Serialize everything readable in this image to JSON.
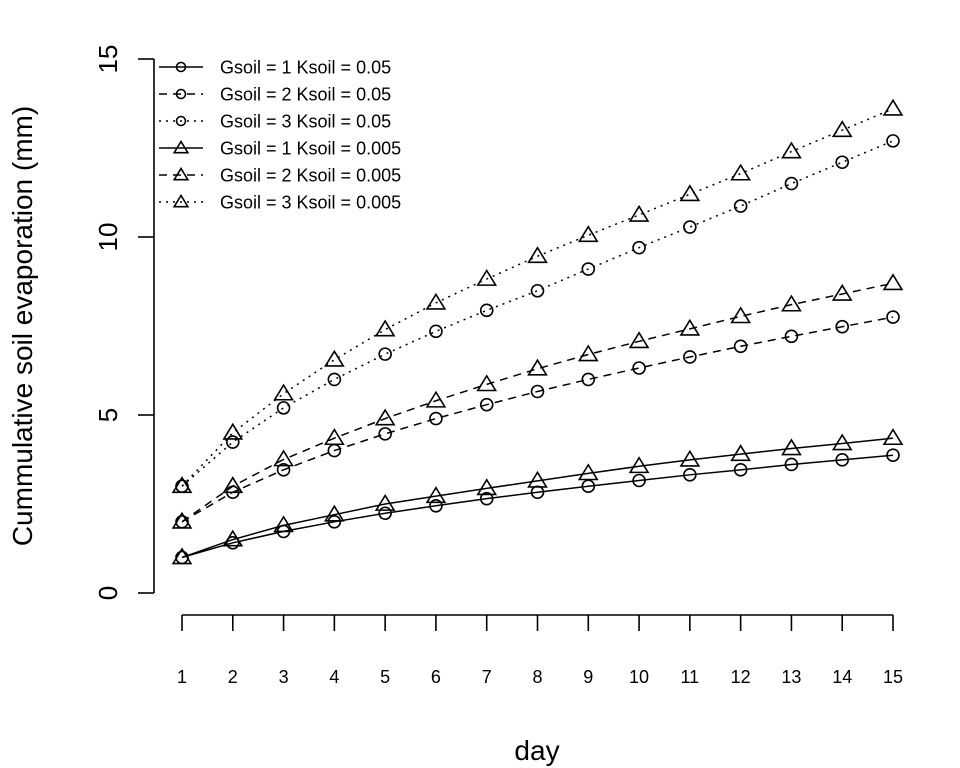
{
  "chart_data": {
    "type": "line",
    "title": "",
    "xlabel": "day",
    "ylabel": "Cummulative soil evaporation (mm)",
    "xlim": [
      1,
      15
    ],
    "ylim": [
      0,
      15
    ],
    "x_ticks": [
      1,
      2,
      3,
      4,
      5,
      6,
      7,
      8,
      9,
      10,
      11,
      12,
      13,
      14,
      15
    ],
    "y_ticks": [
      0,
      5,
      10,
      15
    ],
    "grid": false,
    "legend_position": "top-left",
    "x": [
      1,
      2,
      3,
      4,
      5,
      6,
      7,
      8,
      9,
      10,
      11,
      12,
      13,
      14,
      15
    ],
    "series": [
      {
        "name": "Gsoil = 1 Ksoil = 0.05",
        "marker": "circle",
        "line": "solid",
        "values": [
          1.0,
          1.41,
          1.73,
          2.0,
          2.24,
          2.45,
          2.65,
          2.83,
          3.0,
          3.16,
          3.32,
          3.46,
          3.61,
          3.74,
          3.87
        ]
      },
      {
        "name": "Gsoil = 2 Ksoil = 0.05",
        "marker": "circle",
        "line": "dashed",
        "values": [
          2.0,
          2.83,
          3.46,
          4.0,
          4.47,
          4.9,
          5.29,
          5.66,
          6.0,
          6.32,
          6.63,
          6.93,
          7.21,
          7.48,
          7.75
        ]
      },
      {
        "name": "Gsoil = 3 Ksoil = 0.05",
        "marker": "circle",
        "line": "dotted",
        "values": [
          3.0,
          4.24,
          5.2,
          6.0,
          6.71,
          7.35,
          7.94,
          8.49,
          9.1,
          9.7,
          10.28,
          10.87,
          11.5,
          12.1,
          12.7
        ]
      },
      {
        "name": "Gsoil = 1 Ksoil = 0.005",
        "marker": "triangle",
        "line": "solid",
        "values": [
          1.0,
          1.5,
          1.9,
          2.2,
          2.5,
          2.72,
          2.94,
          3.15,
          3.36,
          3.56,
          3.74,
          3.9,
          4.06,
          4.2,
          4.35
        ]
      },
      {
        "name": "Gsoil = 2 Ksoil = 0.005",
        "marker": "triangle",
        "line": "dashed",
        "values": [
          2.0,
          3.0,
          3.75,
          4.35,
          4.9,
          5.4,
          5.86,
          6.3,
          6.7,
          7.07,
          7.42,
          7.77,
          8.1,
          8.4,
          8.7
        ]
      },
      {
        "name": "Gsoil = 3 Ksoil = 0.005",
        "marker": "triangle",
        "line": "dotted",
        "values": [
          3.0,
          4.5,
          5.6,
          6.55,
          7.4,
          8.15,
          8.82,
          9.46,
          10.05,
          10.62,
          11.2,
          11.78,
          12.4,
          13.0,
          13.6
        ]
      }
    ]
  }
}
